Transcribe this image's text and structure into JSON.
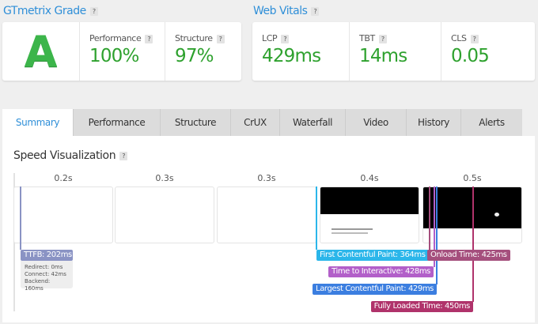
{
  "grade": {
    "title": "GTmetrix Grade",
    "letter": "A",
    "performance_label": "Performance",
    "performance": "100%",
    "structure_label": "Structure",
    "structure": "97%"
  },
  "vitals": {
    "title": "Web Vitals",
    "lcp_label": "LCP",
    "lcp": "429ms",
    "tbt_label": "TBT",
    "tbt": "14ms",
    "cls_label": "CLS",
    "cls": "0.05"
  },
  "help": "?",
  "tabs": [
    "Summary",
    "Performance",
    "Structure",
    "CrUX",
    "Waterfall",
    "Video",
    "History",
    "Alerts"
  ],
  "active_tab": "Summary",
  "speed": {
    "title": "Speed Visualization",
    "frame_times": [
      "0.2s",
      "0.3s",
      "0.3s",
      "0.4s",
      "0.5s"
    ],
    "ttfb": "TTFB: 202ms",
    "redirect": "Redirect: 0ms",
    "connect": "Connect: 42ms",
    "backend": "Backend: 160ms",
    "fcp": "First Contentful Paint: 364ms",
    "onload": "Onload Time: 425ms",
    "tti": "Time to Interactive: 428ms",
    "lcp": "Largest Contentful Paint: 429ms",
    "fully": "Fully Loaded Time: 450ms"
  },
  "colors": {
    "ttfb": "#8a93c4",
    "fcp": "#2bb6ea",
    "onload": "#a54f7d",
    "tti": "#b25fc9",
    "lcp": "#3b7ee0",
    "fully": "#b0336b",
    "green": "#2ea12e",
    "blue": "#2f8fd8"
  }
}
